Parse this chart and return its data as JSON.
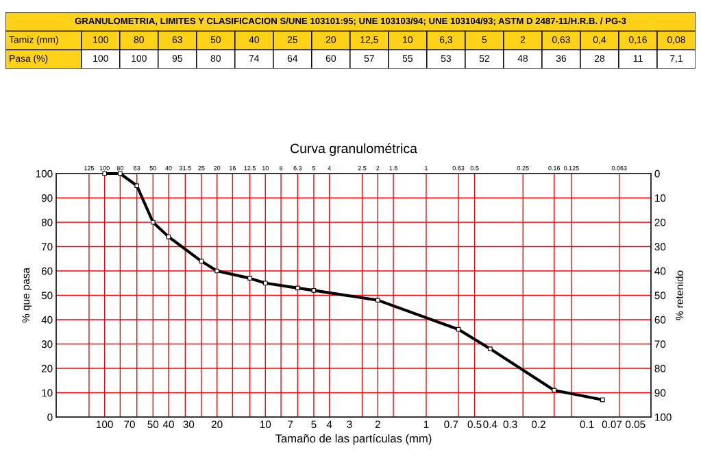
{
  "chart_data": {
    "type": "line",
    "title": "GRANULOMETRIA, LIMITES Y CLASIFICACION S/UNE 103101:95; UNE 103103/94; UNE 103104/93; ASTM D 2487-11/H.R.B. / PG-3",
    "subtitle": "Curva granulométrica",
    "xlabel": "Tamaño de las partículas (mm)",
    "ylabel": "% que pasa",
    "y2label": "% retenido",
    "annotations": [
      "Tamiz (mm)",
      "100",
      "80",
      "63",
      "50",
      "40",
      "25",
      "20",
      "12,5",
      "10",
      "6,3",
      "5",
      "2",
      "0,63",
      "0,4",
      "0,16",
      "0,08",
      "Pasa (%)",
      "100",
      "100",
      "95",
      "80",
      "74",
      "64",
      "60",
      "57",
      "55",
      "53",
      "52",
      "48",
      "36",
      "28",
      "11",
      "7,1"
    ],
    "x": [
      100,
      80,
      63,
      50,
      40,
      25,
      20,
      12.5,
      10,
      6.3,
      5,
      2,
      0.63,
      0.4,
      0.16,
      0.08
    ],
    "values": [
      100,
      100,
      95,
      80,
      74,
      64,
      60,
      57,
      55,
      53,
      52,
      48,
      36,
      28,
      11,
      7.1
    ],
    "color": "#000000",
    "marker": "square",
    "line_style": "solid",
    "log": "x",
    "grid": "y",
    "xlim": [
      200,
      0.04
    ],
    "xticks": [
      100,
      70,
      50,
      40,
      30,
      20,
      10,
      7,
      5,
      4,
      3,
      2,
      1,
      0.7,
      0.5,
      0.4,
      0.3,
      0.2,
      0.1,
      0.07,
      0.05
    ],
    "ref_lines": [
      {
        "axis": "x",
        "value": 125,
        "label": "125",
        "color": "#ff0000"
      },
      {
        "axis": "x",
        "value": 100,
        "label": "100",
        "color": "#ff0000"
      },
      {
        "axis": "x",
        "value": 80,
        "label": "80",
        "color": "#ff0000"
      },
      {
        "axis": "x",
        "value": 63,
        "label": "63",
        "color": "#ff0000"
      },
      {
        "axis": "x",
        "value": 50,
        "label": "50",
        "color": "#ff0000"
      },
      {
        "axis": "x",
        "value": 40,
        "label": "40",
        "color": "#ff0000"
      },
      {
        "axis": "x",
        "value": 31.5,
        "label": "31.5",
        "color": "#ff0000"
      },
      {
        "axis": "x",
        "value": 25,
        "label": "25",
        "color": "#ff0000"
      },
      {
        "axis": "x",
        "value": 20,
        "label": "20",
        "color": "#ff0000"
      },
      {
        "axis": "x",
        "value": 16,
        "label": "16",
        "color": "#ff0000"
      },
      {
        "axis": "x",
        "value": 12.5,
        "label": "12.5",
        "color": "#ff0000"
      },
      {
        "axis": "x",
        "value": 10,
        "label": "10",
        "color": "#ff0000"
      },
      {
        "axis": "x",
        "value": 8,
        "label": "8",
        "color": "#ff0000"
      },
      {
        "axis": "x",
        "value": 6.3,
        "label": "6.3",
        "color": "#ff0000"
      },
      {
        "axis": "x",
        "value": 5,
        "label": "5",
        "color": "#ff0000"
      },
      {
        "axis": "x",
        "value": 4,
        "label": "4",
        "color": "#ff0000"
      },
      {
        "axis": "x",
        "value": 2.5,
        "label": "2.5",
        "color": "#ff0000"
      },
      {
        "axis": "x",
        "value": 2,
        "label": "2",
        "color": "#ff0000"
      },
      {
        "axis": "x",
        "value": 1.6,
        "label": "1.6",
        "color": "#ff0000"
      },
      {
        "axis": "x",
        "value": 1,
        "label": "1",
        "color": "#ff0000"
      },
      {
        "axis": "x",
        "value": 0.63,
        "label": "0.63",
        "color": "#ff0000"
      },
      {
        "axis": "x",
        "value": 0.5,
        "label": "0.5",
        "color": "#ff0000"
      },
      {
        "axis": "x",
        "value": 0.25,
        "label": "0.25",
        "color": "#ff0000"
      },
      {
        "axis": "x",
        "value": 0.16,
        "label": "0.16",
        "color": "#ff0000"
      },
      {
        "axis": "x",
        "value": 0.125,
        "label": "0.125",
        "color": "#ff0000"
      },
      {
        "axis": "x",
        "value": 0.063,
        "label": "0.063",
        "color": "#ff0000"
      }
    ],
    "ylim": [
      0,
      100
    ],
    "yticks": [
      0,
      10,
      20,
      30,
      40,
      50,
      60,
      70,
      80,
      90,
      100
    ],
    "y2lim": [
      100,
      0
    ],
    "y2ticks": [
      0,
      10,
      20,
      30,
      40,
      50,
      60,
      70,
      80,
      90,
      100
    ]
  }
}
